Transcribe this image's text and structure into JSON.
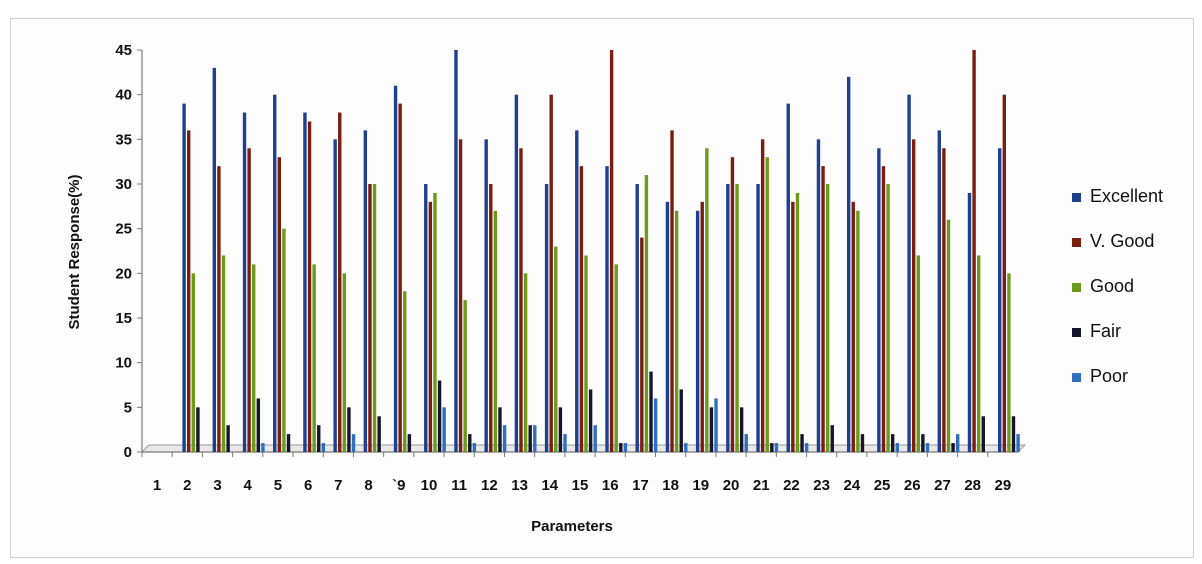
{
  "chart_data": {
    "type": "bar",
    "xlabel": "Parameters",
    "ylabel": "Student Response(%)",
    "ylim": [
      0,
      45
    ],
    "yticks": [
      0,
      5,
      10,
      15,
      20,
      25,
      30,
      35,
      40,
      45
    ],
    "categories": [
      "1",
      "2",
      "3",
      "4",
      "5",
      "6",
      "7",
      "8",
      "`9",
      "10",
      "11",
      "12",
      "13",
      "14",
      "15",
      "16",
      "17",
      "18",
      "19",
      "20",
      "21",
      "22",
      "23",
      "24",
      "25",
      "26",
      "27",
      "28",
      "29"
    ],
    "legend_position": "right",
    "grid": false,
    "series": [
      {
        "name": "Excellent",
        "color": "#1f3f8f",
        "values": [
          0,
          39,
          43,
          38,
          40,
          38,
          35,
          36,
          41,
          30,
          45,
          35,
          40,
          30,
          36,
          32,
          30,
          28,
          27,
          30,
          30,
          39,
          35,
          42,
          34,
          40,
          36,
          29,
          34
        ]
      },
      {
        "name": "V. Good",
        "color": "#7a1e12",
        "values": [
          0,
          36,
          32,
          34,
          33,
          37,
          38,
          30,
          39,
          28,
          35,
          30,
          34,
          40,
          32,
          45,
          24,
          36,
          28,
          33,
          35,
          28,
          32,
          28,
          32,
          35,
          34,
          45,
          40
        ]
      },
      {
        "name": "Good",
        "color": "#6e9a1c",
        "values": [
          0,
          20,
          22,
          21,
          25,
          21,
          20,
          30,
          18,
          29,
          17,
          27,
          20,
          23,
          22,
          21,
          31,
          27,
          34,
          30,
          33,
          29,
          30,
          27,
          30,
          22,
          26,
          22,
          20
        ]
      },
      {
        "name": "Fair",
        "color": "#15152e",
        "values": [
          0,
          5,
          3,
          6,
          2,
          3,
          5,
          4,
          2,
          8,
          2,
          5,
          3,
          5,
          7,
          1,
          9,
          7,
          5,
          5,
          1,
          2,
          3,
          2,
          2,
          2,
          1,
          4,
          4
        ]
      },
      {
        "name": "Poor",
        "color": "#2f6fc0",
        "values": [
          0,
          0,
          0,
          1,
          0,
          1,
          2,
          0,
          0,
          5,
          1,
          3,
          3,
          2,
          3,
          1,
          6,
          1,
          6,
          2,
          1,
          1,
          0,
          0,
          1,
          1,
          2,
          0,
          2
        ]
      }
    ]
  }
}
